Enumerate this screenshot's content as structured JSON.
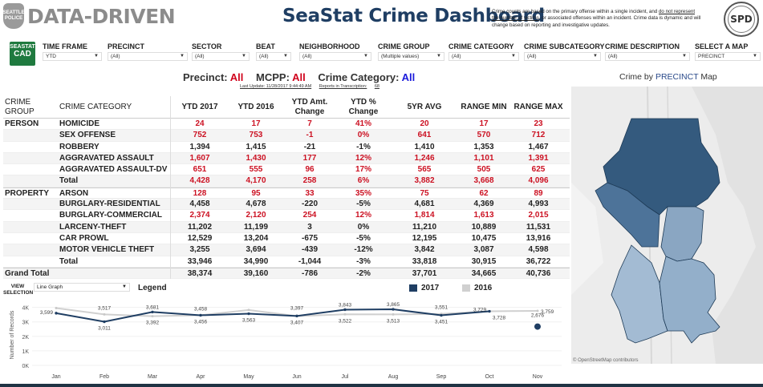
{
  "header": {
    "logo_badge": "SEATTLE POLICE",
    "logo_text": "DATA-DRIVEN",
    "title": "SeaStat Crime Dashboard",
    "disclaimer_part1": "Crime counts are based on the primary offense within a single incident, and ",
    "disclaimer_underlined": "do not represent the number of victims",
    "disclaimer_part2": ", or associated offenses within an incident. Crime data is dynamic and will change based on reporting and investigative updates.",
    "seal_text": "SPD",
    "cad_logo_top": "SEASTAT",
    "cad_logo_bottom": "CAD"
  },
  "filters": [
    {
      "label": "TIME FRAME",
      "value": "YTD"
    },
    {
      "label": "PRECINCT",
      "value": "(All)"
    },
    {
      "label": "SECTOR",
      "value": "(All)"
    },
    {
      "label": "BEAT",
      "value": "(All)"
    },
    {
      "label": "NEIGHBORHOOD",
      "value": "(All)"
    },
    {
      "label": "CRIME GROUP",
      "value": "(Multiple values)"
    },
    {
      "label": "CRIME CATEGORY",
      "value": "(All)"
    },
    {
      "label": "CRIME SUBCATEGORY",
      "value": "(All)"
    },
    {
      "label": "CRIME DESCRIPTION",
      "value": "(All)"
    },
    {
      "label": "SELECT A MAP",
      "value": "PRECINCT"
    }
  ],
  "criteria": {
    "precinct_label": "Precinct:",
    "precinct_value": "All",
    "mcpp_label": "MCPP:",
    "mcpp_value": "All",
    "category_label": "Crime Category:",
    "category_value": "All",
    "last_update": "Last Update: 11/28/2017 9:44:49 AM",
    "reports_label": "Reports in Transcription:",
    "reports_value": "68"
  },
  "table": {
    "headers": {
      "group": "CRIME GROUP",
      "category": "CRIME CATEGORY",
      "ytd2017": "YTD 2017",
      "ytd2016": "YTD 2016",
      "amt_change": "YTD Amt. Change",
      "pct_change": "YTD % Change",
      "avg5": "5YR AVG",
      "range_min": "RANGE MIN",
      "range_max": "RANGE MAX"
    },
    "rows": [
      {
        "group": "PERSON",
        "category": "HOMICIDE",
        "values": [
          "24",
          "17",
          "7",
          "41%",
          "20",
          "17",
          "23"
        ],
        "highlight": true
      },
      {
        "group": "",
        "category": "SEX OFFENSE",
        "values": [
          "752",
          "753",
          "-1",
          "0%",
          "641",
          "570",
          "712"
        ],
        "highlight": true
      },
      {
        "group": "",
        "category": "ROBBERY",
        "values": [
          "1,394",
          "1,415",
          "-21",
          "-1%",
          "1,410",
          "1,353",
          "1,467"
        ],
        "highlight": false
      },
      {
        "group": "",
        "category": "AGGRAVATED ASSAULT",
        "values": [
          "1,607",
          "1,430",
          "177",
          "12%",
          "1,246",
          "1,101",
          "1,391"
        ],
        "highlight": true
      },
      {
        "group": "",
        "category": "AGGRAVATED ASSAULT-DV",
        "values": [
          "651",
          "555",
          "96",
          "17%",
          "565",
          "505",
          "625"
        ],
        "highlight": true
      },
      {
        "group": "",
        "category": "Total",
        "values": [
          "4,428",
          "4,170",
          "258",
          "6%",
          "3,882",
          "3,668",
          "4,096"
        ],
        "highlight": true
      },
      {
        "group": "PROPERTY",
        "category": "ARSON",
        "values": [
          "128",
          "95",
          "33",
          "35%",
          "75",
          "62",
          "89"
        ],
        "highlight": true
      },
      {
        "group": "",
        "category": "BURGLARY-RESIDENTIAL",
        "values": [
          "4,458",
          "4,678",
          "-220",
          "-5%",
          "4,681",
          "4,369",
          "4,993"
        ],
        "highlight": false
      },
      {
        "group": "",
        "category": "BURGLARY-COMMERCIAL",
        "values": [
          "2,374",
          "2,120",
          "254",
          "12%",
          "1,814",
          "1,613",
          "2,015"
        ],
        "highlight": true
      },
      {
        "group": "",
        "category": "LARCENY-THEFT",
        "values": [
          "11,202",
          "11,199",
          "3",
          "0%",
          "11,210",
          "10,889",
          "11,531"
        ],
        "highlight": false
      },
      {
        "group": "",
        "category": "CAR PROWL",
        "values": [
          "12,529",
          "13,204",
          "-675",
          "-5%",
          "12,195",
          "10,475",
          "13,916"
        ],
        "highlight": false
      },
      {
        "group": "",
        "category": "MOTOR VEHICLE THEFT",
        "values": [
          "3,255",
          "3,694",
          "-439",
          "-12%",
          "3,842",
          "3,087",
          "4,598"
        ],
        "highlight": false
      },
      {
        "group": "",
        "category": "Total",
        "values": [
          "33,946",
          "34,990",
          "-1,044",
          "-3%",
          "33,818",
          "30,915",
          "36,722"
        ],
        "highlight": false
      },
      {
        "group": "Grand Total",
        "category": "",
        "values": [
          "38,374",
          "39,160",
          "-786",
          "-2%",
          "37,701",
          "34,665",
          "40,736"
        ],
        "highlight": false
      }
    ]
  },
  "view": {
    "label": "VIEW SELECTION",
    "value": "Line Graph",
    "legend_title": "Legend"
  },
  "map": {
    "title_prefix": "Crime by ",
    "title_highlight": "PRECINCT",
    "title_suffix": " Map",
    "attribution": "© OpenStreetMap contributors"
  },
  "colors": {
    "series_2017": "#1f3e63",
    "series_2016": "#d0d0d0",
    "highlight_red": "#cc1122",
    "title_blue": "#1f3e63"
  },
  "chart_data": {
    "type": "line",
    "title": "",
    "xlabel": "",
    "ylabel": "Number of Records",
    "categories": [
      "Jan",
      "Feb",
      "Mar",
      "Apr",
      "May",
      "Jun",
      "Jul",
      "Aug",
      "Sep",
      "Oct",
      "Nov"
    ],
    "y_ticks": [
      "0K",
      "1K",
      "2K",
      "3K",
      "4K"
    ],
    "ylim": [
      0,
      4200
    ],
    "grid": true,
    "legend": "top",
    "series": [
      {
        "name": "2017",
        "values": [
          3599,
          3011,
          3681,
          3456,
          3563,
          3407,
          3843,
          3865,
          3451,
          3729,
          2676
        ],
        "labels": [
          "3,599",
          "3,011",
          "3,681",
          "3,456",
          "3,563",
          "3,407",
          "3,843",
          "3,865",
          "3,451",
          "3,729",
          "2,676"
        ]
      },
      {
        "name": "2016",
        "values": [
          3950,
          3517,
          3392,
          3458,
          3820,
          3397,
          3522,
          3513,
          3551,
          3728,
          3759
        ],
        "labels": [
          "",
          "3,517",
          "3,392",
          "3,458",
          "",
          "3,397",
          "3,522",
          "3,513",
          "3,551",
          "3,728",
          "3,759"
        ]
      }
    ]
  }
}
